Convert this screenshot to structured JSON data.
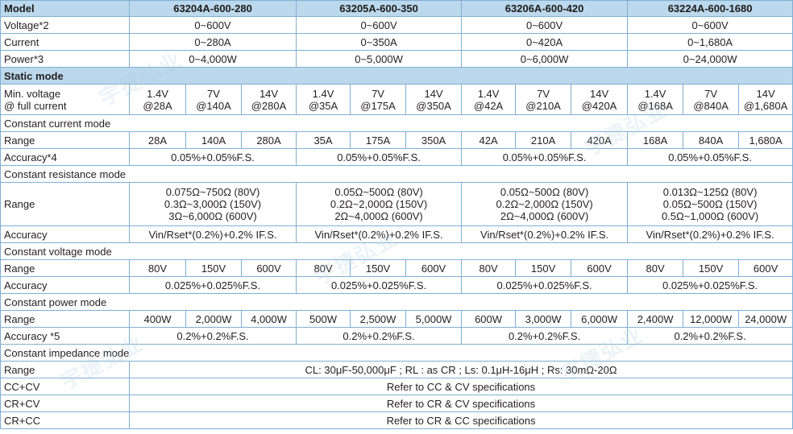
{
  "header": {
    "model_label": "Model",
    "models": [
      "63204A-600-280",
      "63205A-600-350",
      "63206A-600-420",
      "63224A-600-1680"
    ]
  },
  "voltage": {
    "label": "Voltage*2",
    "values": [
      "0~600V",
      "0~600V",
      "0~600V",
      "0~600V"
    ]
  },
  "current": {
    "label": "Current",
    "values": [
      "0~280A",
      "0~350A",
      "0~420A",
      "0~1,680A"
    ]
  },
  "power": {
    "label": "Power*3",
    "values": [
      "0~4,000W",
      "0~5,000W",
      "0~6,000W",
      "0~24,000W"
    ]
  },
  "static_mode": {
    "label": "Static mode"
  },
  "min_voltage": {
    "label_line1": "Min. voltage",
    "label_line2": "@ full current",
    "cells": [
      [
        "1.4V",
        "@28A"
      ],
      [
        "7V",
        "@140A"
      ],
      [
        "14V",
        "@280A"
      ],
      [
        "1.4V",
        "@35A"
      ],
      [
        "7V",
        "@175A"
      ],
      [
        "14V",
        "@350A"
      ],
      [
        "1.4V",
        "@42A"
      ],
      [
        "7V",
        "@210A"
      ],
      [
        "14V",
        "@420A"
      ],
      [
        "1.4V",
        "@168A"
      ],
      [
        "7V",
        "@840A"
      ],
      [
        "14V",
        "@1,680A"
      ]
    ]
  },
  "cc_mode": {
    "section": "Constant current mode",
    "range_label": "Range",
    "range": [
      "28A",
      "140A",
      "280A",
      "35A",
      "175A",
      "350A",
      "42A",
      "210A",
      "420A",
      "168A",
      "840A",
      "1,680A"
    ],
    "accuracy_label": "Accuracy*4",
    "accuracy": [
      "0.05%+0.05%F.S.",
      "0.05%+0.05%F.S.",
      "0.05%+0.05%F.S.",
      "0.05%+0.05%F.S."
    ]
  },
  "cr_mode": {
    "section": "Constant resistance mode",
    "range_label": "Range",
    "range": [
      [
        "0.075Ω~750Ω (80V)",
        "0.3Ω~3,000Ω (150V)",
        "3Ω~6,000Ω (600V)"
      ],
      [
        "0.05Ω~500Ω (80V)",
        "0.2Ω~2,000Ω (150V)",
        "2Ω~4,000Ω (600V)"
      ],
      [
        "0.05Ω~500Ω (80V)",
        "0.2Ω~2,000Ω (150V)",
        "2Ω~4,000Ω (600V)"
      ],
      [
        "0.013Ω~125Ω (80V)",
        "0.05Ω~500Ω (150V)",
        "0.5Ω~1,000Ω (600V)"
      ]
    ],
    "accuracy_label": "Accuracy",
    "accuracy": [
      "Vin/Rset*(0.2%)+0.2% IF.S.",
      "Vin/Rset*(0.2%)+0.2% IF.S.",
      "Vin/Rset*(0.2%)+0.2% IF.S.",
      "Vin/Rset*(0.2%)+0.2% IF.S."
    ]
  },
  "cv_mode": {
    "section": "Constant voltage mode",
    "range_label": "Range",
    "range": [
      "80V",
      "150V",
      "600V",
      "80V",
      "150V",
      "600V",
      "80V",
      "150V",
      "600V",
      "80V",
      "150V",
      "600V"
    ],
    "accuracy_label": "Accuracy",
    "accuracy": [
      "0.025%+0.025%F.S.",
      "0.025%+0.025%F.S.",
      "0.025%+0.025%F.S.",
      "0.025%+0.025%F.S."
    ]
  },
  "cp_mode": {
    "section": "Constant power mode",
    "range_label": "Range",
    "range": [
      "400W",
      "2,000W",
      "4,000W",
      "500W",
      "2,500W",
      "5,000W",
      "600W",
      "3,000W",
      "6,000W",
      "2,400W",
      "12,000W",
      "24,000W"
    ],
    "accuracy_label": "Accuracy *5",
    "accuracy": [
      "0.2%+0.2%F.S.",
      "0.2%+0.2%F.S.",
      "0.2%+0.2%F.S.",
      "0.2%+0.2%F.S."
    ]
  },
  "ci_mode": {
    "section": "Constant impedance mode",
    "range_label": "Range",
    "range_value": "CL: 30μF-50,000μF ; RL : as CR ; Ls: 0.1μH-16μH ; Rs: 30mΩ-20Ω"
  },
  "cc_cv": {
    "label": "CC+CV",
    "value": "Refer to CC & CV specifications"
  },
  "cr_cv": {
    "label": "CR+CV",
    "value": "Refer to CR & CV specifications"
  },
  "cr_cc": {
    "label": "CR+CC",
    "value": "Refer to CR & CC specifications"
  },
  "watermark": "宇捷弘业",
  "colors": {
    "header_bg": "#bcd8ec",
    "border": "#7fb0d2"
  }
}
